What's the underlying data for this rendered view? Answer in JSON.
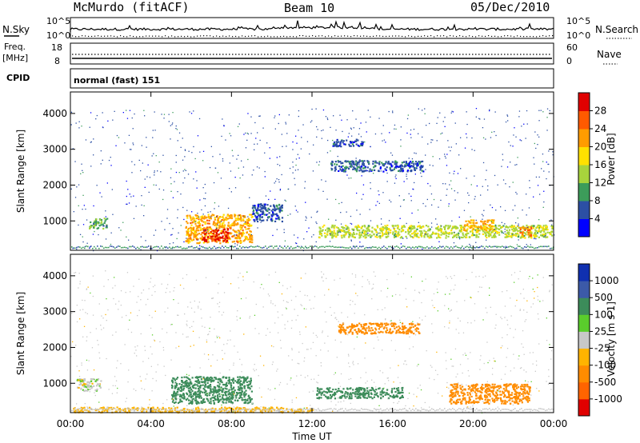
{
  "header": {
    "station": "McMurdo (fitACF)",
    "beam": "Beam 10",
    "date": "05/Dec/2010"
  },
  "top_panels": {
    "nsky_label": "N.Sky",
    "nsearch_label": "N.Search",
    "noise_ticks": [
      "10^5",
      "10^0"
    ],
    "freq_label_1": "Freq.",
    "freq_label_2": "[MHz]",
    "freq_ticks": [
      "18",
      "8"
    ],
    "nave_label": "Nave",
    "nave_ticks": [
      "60",
      "0"
    ],
    "cpid_label": "CPID",
    "cpid_text": "normal (fast) 151"
  },
  "colors": {
    "power_scale": [
      "#0000ff",
      "#2c4fa4",
      "#3c9c5a",
      "#a8d43c",
      "#ffe100",
      "#ff9c00",
      "#ff5a00",
      "#e00000"
    ],
    "velocity_scale": [
      "#1030b0",
      "#3c5aa8",
      "#3c8c5a",
      "#5acd2c",
      "#c8c8c8",
      "#ffb400",
      "#ff8c00",
      "#ff6400",
      "#e00000"
    ]
  },
  "chart_data": [
    {
      "type": "heatmap",
      "title": "Power",
      "xlabel": "Time UT",
      "ylabel": "Slant Range [km]",
      "x_ticks": [
        "00:00",
        "04:00",
        "08:00",
        "12:00",
        "16:00",
        "20:00",
        "00:00"
      ],
      "y_ticks": [
        1000,
        2000,
        3000,
        4000
      ],
      "ylim": [
        180,
        4600
      ],
      "colorbar": {
        "label": "Power [dB]",
        "ticks": [
          4,
          8,
          12,
          16,
          20,
          24,
          28
        ],
        "range": [
          0,
          30
        ]
      },
      "regions": [
        {
          "t": [
            5.7,
            9.0
          ],
          "r": [
            400,
            1200
          ],
          "level": 20
        },
        {
          "t": [
            6.5,
            7.8
          ],
          "r": [
            450,
            800
          ],
          "level": 27
        },
        {
          "t": [
            0.9,
            1.8
          ],
          "r": [
            800,
            1100
          ],
          "level": 10
        },
        {
          "t": [
            12.3,
            23.9
          ],
          "r": [
            550,
            900
          ],
          "level": 14
        },
        {
          "t": [
            19.5,
            21.0
          ],
          "r": [
            750,
            1050
          ],
          "level": 20
        },
        {
          "t": [
            22.3,
            22.9
          ],
          "r": [
            600,
            850
          ],
          "level": 22
        },
        {
          "t": [
            12.9,
            17.5
          ],
          "r": [
            2400,
            2700
          ],
          "level": 6
        },
        {
          "t": [
            13.0,
            14.5
          ],
          "r": [
            3100,
            3300
          ],
          "level": 5
        },
        {
          "t": [
            9.0,
            10.5
          ],
          "r": [
            1000,
            1500
          ],
          "level": 6
        }
      ]
    },
    {
      "type": "heatmap",
      "title": "Velocity",
      "xlabel": "Time UT",
      "ylabel": "Slant Range [km]",
      "x_ticks": [
        "00:00",
        "04:00",
        "08:00",
        "12:00",
        "16:00",
        "20:00",
        "00:00"
      ],
      "y_ticks": [
        1000,
        2000,
        3000,
        4000
      ],
      "ylim": [
        180,
        4600
      ],
      "colorbar": {
        "label": "Velocity [m s-1]",
        "ticks": [
          1000,
          500,
          100,
          25,
          -25,
          -100,
          -500,
          -1000
        ]
      },
      "regions": [
        {
          "t": [
            5.0,
            9.0
          ],
          "r": [
            450,
            1200
          ],
          "level": 150
        },
        {
          "t": [
            12.2,
            16.5
          ],
          "r": [
            600,
            900
          ],
          "level": 200
        },
        {
          "t": [
            18.8,
            22.8
          ],
          "r": [
            450,
            1000
          ],
          "level": -400
        },
        {
          "t": [
            13.3,
            17.3
          ],
          "r": [
            2400,
            2700
          ],
          "level": -150
        },
        {
          "t": [
            0.3,
            1.5
          ],
          "r": [
            800,
            1150
          ],
          "level": 0
        },
        {
          "t": [
            0.0,
            12.0
          ],
          "r": [
            200,
            350
          ],
          "level": -60
        }
      ]
    }
  ]
}
